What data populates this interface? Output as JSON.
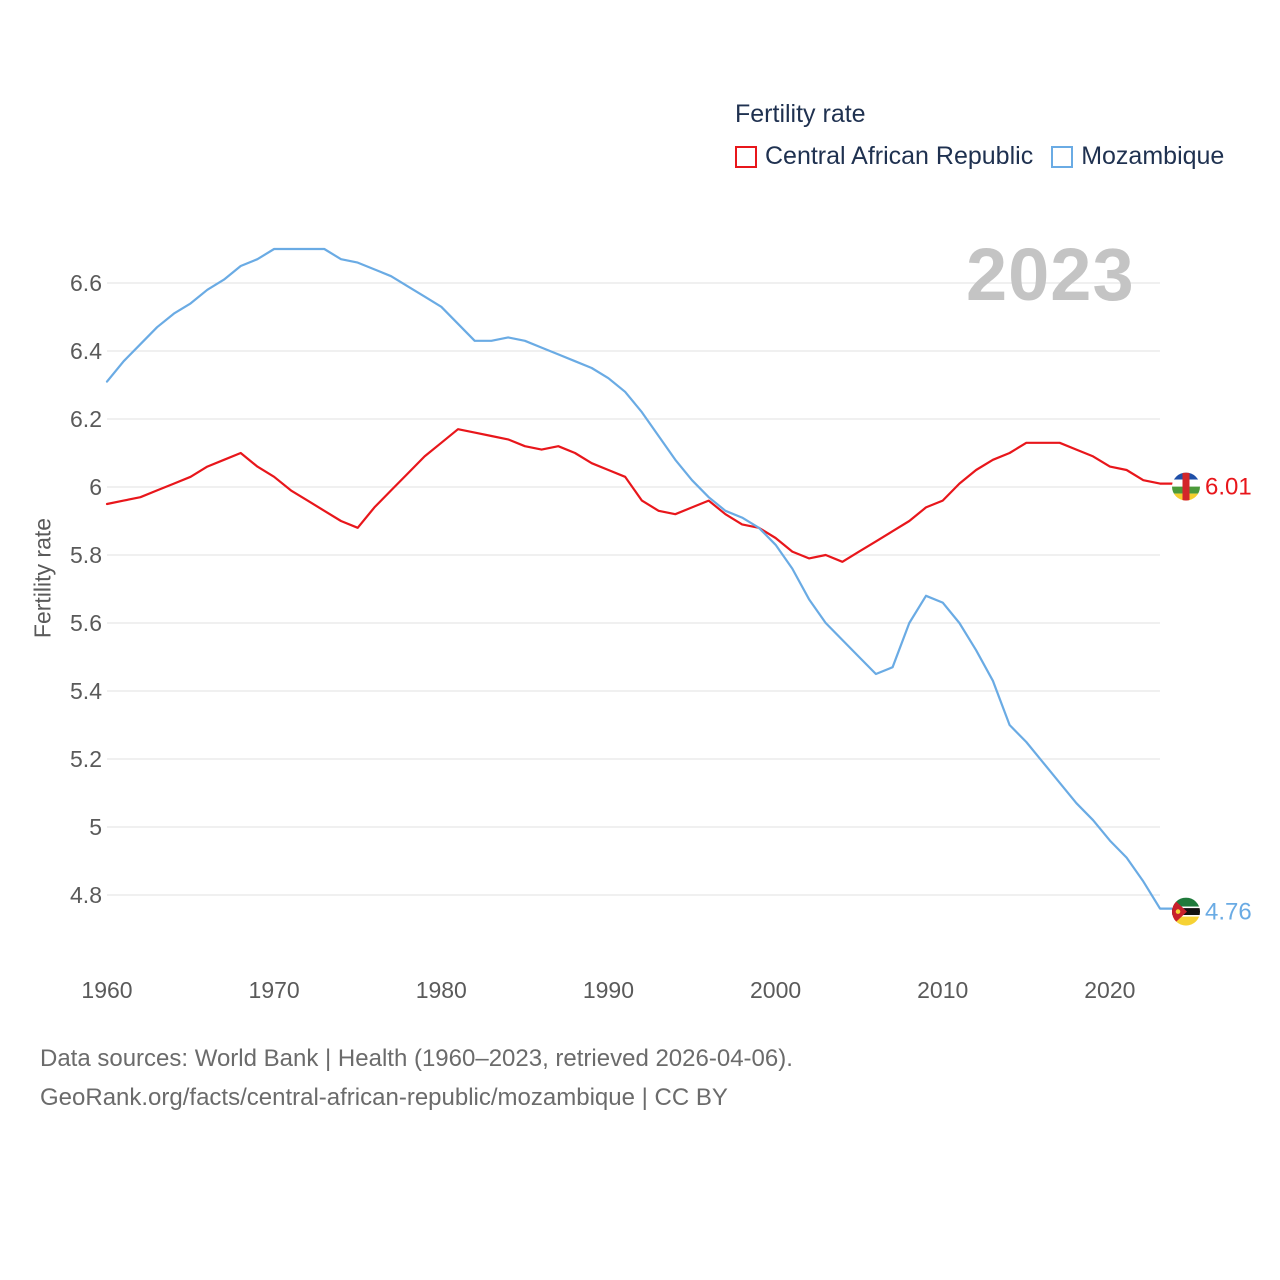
{
  "legend": {
    "title": "Fertility rate",
    "items": [
      {
        "label": "Central African Republic",
        "color": "#e8161b"
      },
      {
        "label": "Mozambique",
        "color": "#6aabe4"
      }
    ]
  },
  "year_watermark": "2023",
  "footer": {
    "line1": "Data sources: World Bank | Health (1960–2023, retrieved 2026-04-06).",
    "line2": "GeoRank.org/facts/central-african-republic/mozambique | CC BY"
  },
  "chart_data": {
    "type": "line",
    "title": "Fertility rate",
    "xlabel": "",
    "ylabel": "Fertility rate",
    "xlim": [
      1960,
      2023
    ],
    "ylim": [
      4.65,
      6.8
    ],
    "grid": true,
    "legend_position": "top-right",
    "x_ticks": [
      1960,
      1970,
      1980,
      1990,
      2000,
      2010,
      2020
    ],
    "y_ticks": [
      {
        "value": 4.8,
        "label": "4.8"
      },
      {
        "value": 5.0,
        "label": "5"
      },
      {
        "value": 5.2,
        "label": "5.2"
      },
      {
        "value": 5.4,
        "label": "5.4"
      },
      {
        "value": 5.6,
        "label": "5.6"
      },
      {
        "value": 5.8,
        "label": "5.8"
      },
      {
        "value": 6.0,
        "label": "6"
      },
      {
        "value": 6.2,
        "label": "6.2"
      },
      {
        "value": 6.4,
        "label": "6.4"
      },
      {
        "value": 6.6,
        "label": "6.6"
      }
    ],
    "x": [
      1960,
      1961,
      1962,
      1963,
      1964,
      1965,
      1966,
      1967,
      1968,
      1969,
      1970,
      1971,
      1972,
      1973,
      1974,
      1975,
      1976,
      1977,
      1978,
      1979,
      1980,
      1981,
      1982,
      1983,
      1984,
      1985,
      1986,
      1987,
      1988,
      1989,
      1990,
      1991,
      1992,
      1993,
      1994,
      1995,
      1996,
      1997,
      1998,
      1999,
      2000,
      2001,
      2002,
      2003,
      2004,
      2005,
      2006,
      2007,
      2008,
      2009,
      2010,
      2011,
      2012,
      2013,
      2014,
      2015,
      2016,
      2017,
      2018,
      2019,
      2020,
      2021,
      2022,
      2023
    ],
    "series": [
      {
        "name": "Central African Republic",
        "color": "#e8161b",
        "end_label": "6.01",
        "flag": "central-african-republic-flag-icon",
        "values": [
          5.95,
          5.96,
          5.97,
          5.99,
          6.01,
          6.03,
          6.06,
          6.08,
          6.1,
          6.06,
          6.03,
          5.99,
          5.96,
          5.93,
          5.9,
          5.88,
          5.94,
          5.99,
          6.04,
          6.09,
          6.13,
          6.17,
          6.16,
          6.15,
          6.14,
          6.12,
          6.11,
          6.12,
          6.1,
          6.07,
          6.05,
          6.03,
          5.96,
          5.93,
          5.92,
          5.94,
          5.96,
          5.92,
          5.89,
          5.88,
          5.85,
          5.81,
          5.79,
          5.8,
          5.78,
          5.81,
          5.84,
          5.87,
          5.9,
          5.94,
          5.96,
          6.01,
          6.05,
          6.08,
          6.1,
          6.13,
          6.13,
          6.13,
          6.11,
          6.09,
          6.06,
          6.05,
          6.02,
          6.01
        ]
      },
      {
        "name": "Mozambique",
        "color": "#6aabe4",
        "end_label": "4.76",
        "flag": "mozambique-flag-icon",
        "values": [
          6.31,
          6.37,
          6.42,
          6.47,
          6.51,
          6.54,
          6.58,
          6.61,
          6.65,
          6.67,
          6.7,
          6.7,
          6.7,
          6.7,
          6.67,
          6.66,
          6.64,
          6.62,
          6.59,
          6.56,
          6.53,
          6.48,
          6.43,
          6.43,
          6.44,
          6.43,
          6.41,
          6.39,
          6.37,
          6.35,
          6.32,
          6.28,
          6.22,
          6.15,
          6.08,
          6.02,
          5.97,
          5.93,
          5.91,
          5.88,
          5.83,
          5.76,
          5.67,
          5.6,
          5.55,
          5.5,
          5.45,
          5.47,
          5.6,
          5.68,
          5.66,
          5.6,
          5.52,
          5.43,
          5.3,
          5.25,
          5.19,
          5.13,
          5.07,
          5.02,
          4.96,
          4.91,
          4.84,
          4.76
        ]
      }
    ]
  }
}
